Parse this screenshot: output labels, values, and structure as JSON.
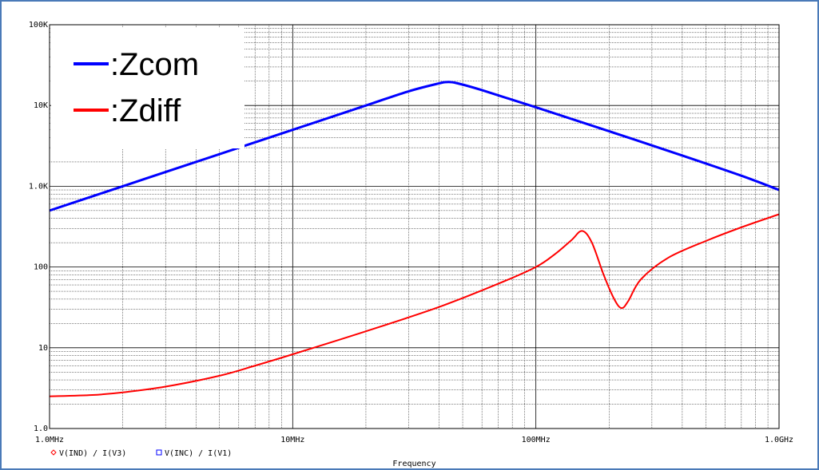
{
  "chart_data": {
    "type": "line",
    "x_scale": "log",
    "y_scale": "log",
    "xlim": [
      1000000,
      1000000000
    ],
    "ylim": [
      1,
      100000
    ],
    "xlabel": "Frequency",
    "ylabel": "",
    "grid": true,
    "x_ticks": [
      {
        "value": 1000000,
        "label": "1.0MHz"
      },
      {
        "value": 10000000,
        "label": "10MHz"
      },
      {
        "value": 100000000,
        "label": "100MHz"
      },
      {
        "value": 1000000000,
        "label": "1.0GHz"
      }
    ],
    "y_ticks": [
      {
        "value": 1,
        "label": "1.0"
      },
      {
        "value": 10,
        "label": "10"
      },
      {
        "value": 100,
        "label": "100"
      },
      {
        "value": 1000,
        "label": "1.0K"
      },
      {
        "value": 10000,
        "label": "10K"
      },
      {
        "value": 100000,
        "label": "100K"
      }
    ],
    "legend_overlay": {
      "placement": "top-left",
      "entries": [
        {
          "text": ":Zcom",
          "color": "#0000ff"
        },
        {
          "text": ":Zdiff",
          "color": "#ff0000"
        }
      ]
    },
    "trace_legend": {
      "placement": "bottom-left",
      "entries": [
        {
          "marker": "diamond",
          "color": "#ff0000",
          "text": "V(IND) / I(V3)"
        },
        {
          "marker": "square",
          "color": "#0000ff",
          "text": "V(INC) / I(V1)"
        }
      ]
    },
    "series": [
      {
        "name": "Zcom",
        "color": "#0000ff",
        "x": [
          1000000,
          2000000,
          4000000,
          10000000,
          20000000,
          30000000,
          40000000,
          43000000,
          47000000,
          60000000,
          100000000,
          200000000,
          400000000,
          700000000,
          1000000000
        ],
        "y": [
          500,
          1000,
          2000,
          5000,
          10000,
          15000,
          18800,
          19500,
          19000,
          15500,
          9500,
          4800,
          2400,
          1350,
          900
        ]
      },
      {
        "name": "Zdiff",
        "color": "#ff0000",
        "x": [
          1000000,
          1500000,
          2000000,
          3000000,
          5000000,
          7000000,
          10000000,
          20000000,
          40000000,
          70000000,
          100000000,
          120000000,
          140000000,
          155000000,
          170000000,
          190000000,
          210000000,
          225000000,
          240000000,
          270000000,
          350000000,
          500000000,
          700000000,
          1000000000
        ],
        "y": [
          2.5,
          2.6,
          2.8,
          3.3,
          4.5,
          6,
          8.3,
          16,
          32,
          62,
          100,
          145,
          215,
          280,
          200,
          80,
          40,
          31,
          38,
          70,
          130,
          210,
          310,
          450
        ]
      }
    ]
  }
}
